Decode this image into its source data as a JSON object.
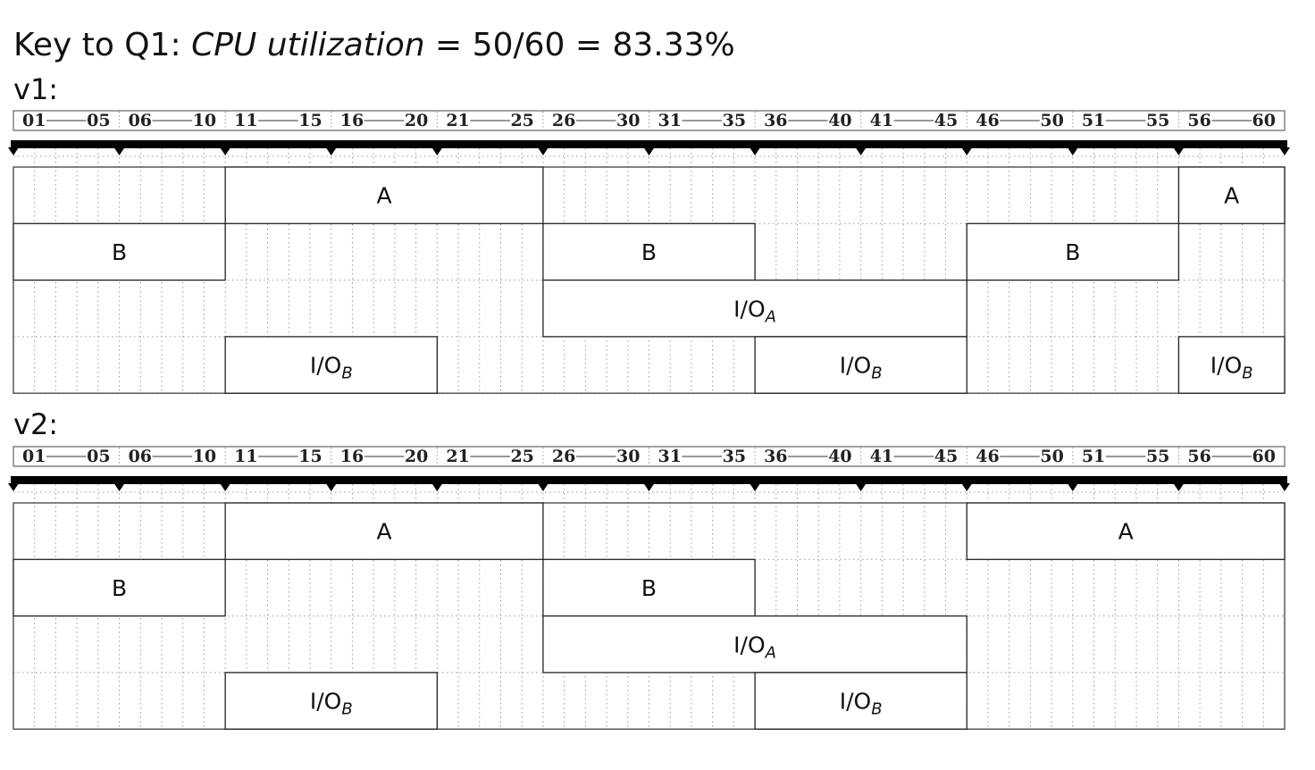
{
  "heading": {
    "prefix": "Key to Q1: ",
    "metric": "CPU utilization",
    "formula": " = 50/60 = 83.33%"
  },
  "colors": {
    "line": "#000000",
    "grid": "#9a9a9a",
    "background": "#ffffff"
  },
  "timeline": {
    "start": 0,
    "end": 60,
    "group_labels": [
      [
        "01",
        "05"
      ],
      [
        "06",
        "10"
      ],
      [
        "11",
        "15"
      ],
      [
        "16",
        "20"
      ],
      [
        "21",
        "25"
      ],
      [
        "26",
        "30"
      ],
      [
        "31",
        "35"
      ],
      [
        "36",
        "40"
      ],
      [
        "41",
        "45"
      ],
      [
        "46",
        "50"
      ],
      [
        "51",
        "55"
      ],
      [
        "56",
        "60"
      ]
    ]
  },
  "charts": [
    {
      "id": "v1",
      "label": "v1:",
      "lanes": [
        [
          {
            "label": "A",
            "start": 10,
            "end": 25
          },
          {
            "label": "A",
            "start": 55,
            "end": 60
          }
        ],
        [
          {
            "label": "B",
            "start": 0,
            "end": 10
          },
          {
            "label": "B",
            "start": 25,
            "end": 35
          },
          {
            "label": "B",
            "start": 45,
            "end": 55
          }
        ],
        [
          {
            "label": "I/O",
            "sub": "A",
            "start": 25,
            "end": 45
          }
        ],
        [
          {
            "label": "I/O",
            "sub": "B",
            "start": 10,
            "end": 20
          },
          {
            "label": "I/O",
            "sub": "B",
            "start": 35,
            "end": 45
          },
          {
            "label": "I/O",
            "sub": "B",
            "start": 55,
            "end": 60
          }
        ]
      ]
    },
    {
      "id": "v2",
      "label": "v2:",
      "lanes": [
        [
          {
            "label": "A",
            "start": 10,
            "end": 25
          },
          {
            "label": "A",
            "start": 45,
            "end": 60
          }
        ],
        [
          {
            "label": "B",
            "start": 0,
            "end": 10
          },
          {
            "label": "B",
            "start": 25,
            "end": 35
          }
        ],
        [
          {
            "label": "I/O",
            "sub": "A",
            "start": 25,
            "end": 45
          }
        ],
        [
          {
            "label": "I/O",
            "sub": "B",
            "start": 10,
            "end": 20
          },
          {
            "label": "I/O",
            "sub": "B",
            "start": 35,
            "end": 45
          }
        ]
      ]
    }
  ]
}
